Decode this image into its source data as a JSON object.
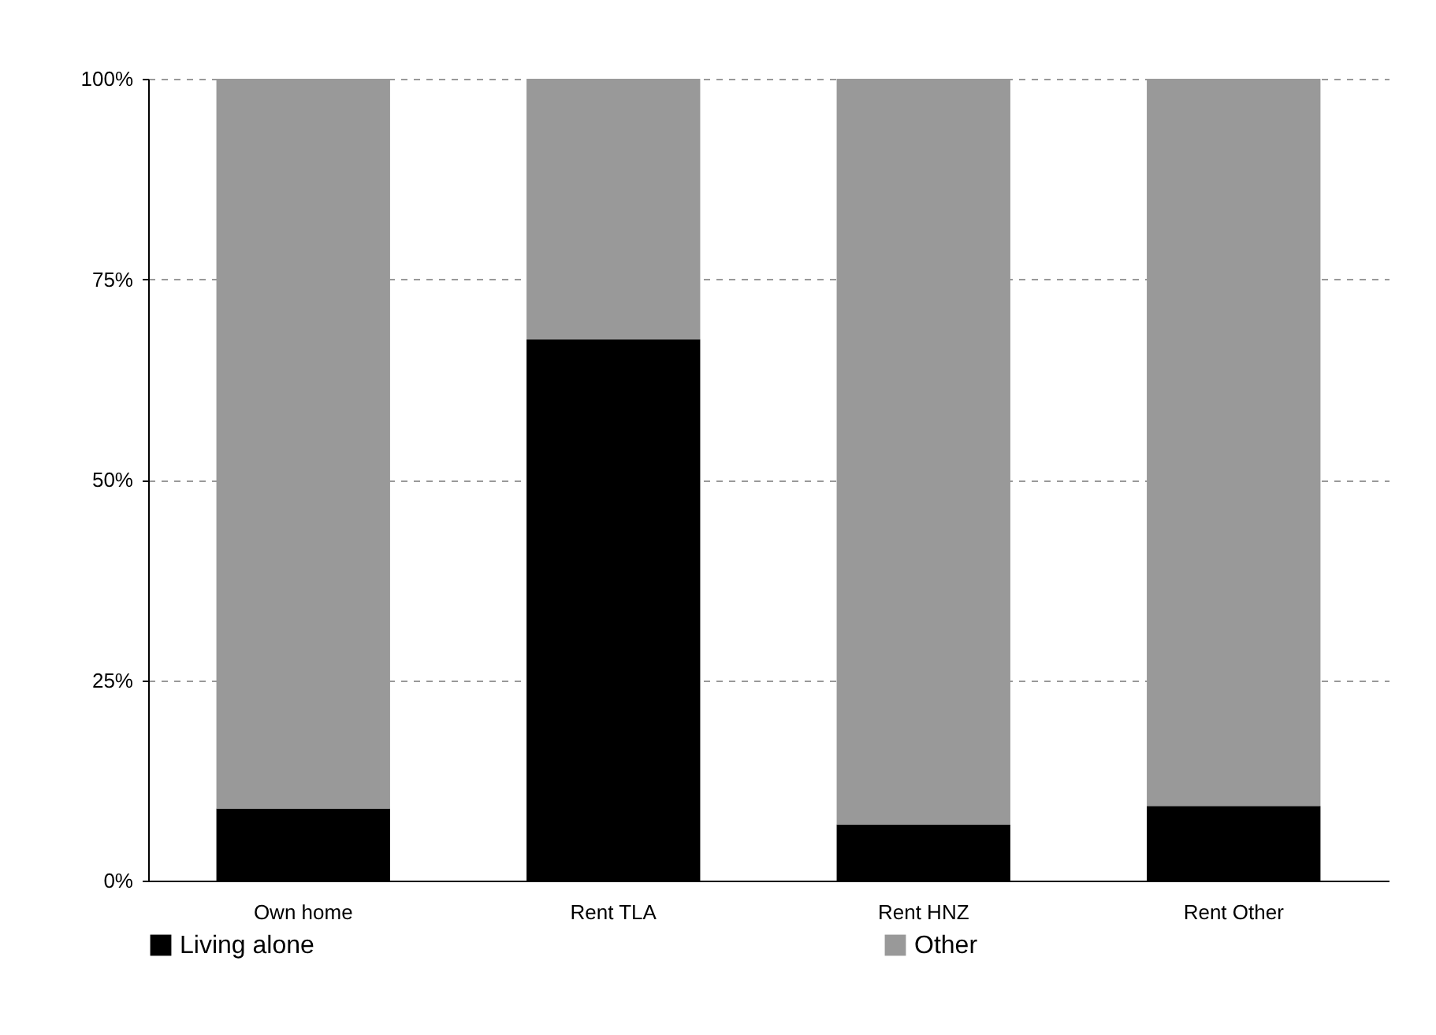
{
  "chart_data": {
    "type": "bar",
    "stacked": true,
    "categories": [
      "Own home",
      "Rent TLA",
      "Rent HNZ",
      "Rent Other"
    ],
    "series": [
      {
        "name": "Living alone",
        "color": "#000000",
        "values": [
          9,
          67.5,
          7,
          9.3
        ]
      },
      {
        "name": "Other",
        "color": "#999999",
        "values": [
          91,
          32.5,
          93,
          90.7
        ]
      }
    ],
    "ylim": [
      0,
      100
    ],
    "yticks": [
      {
        "value": 0,
        "label": "0%"
      },
      {
        "value": 25,
        "label": "25%"
      },
      {
        "value": 50,
        "label": "50%"
      },
      {
        "value": 75,
        "label": "75%"
      },
      {
        "value": 100,
        "label": "100%"
      }
    ],
    "grid": "y",
    "legend": "bottom"
  }
}
